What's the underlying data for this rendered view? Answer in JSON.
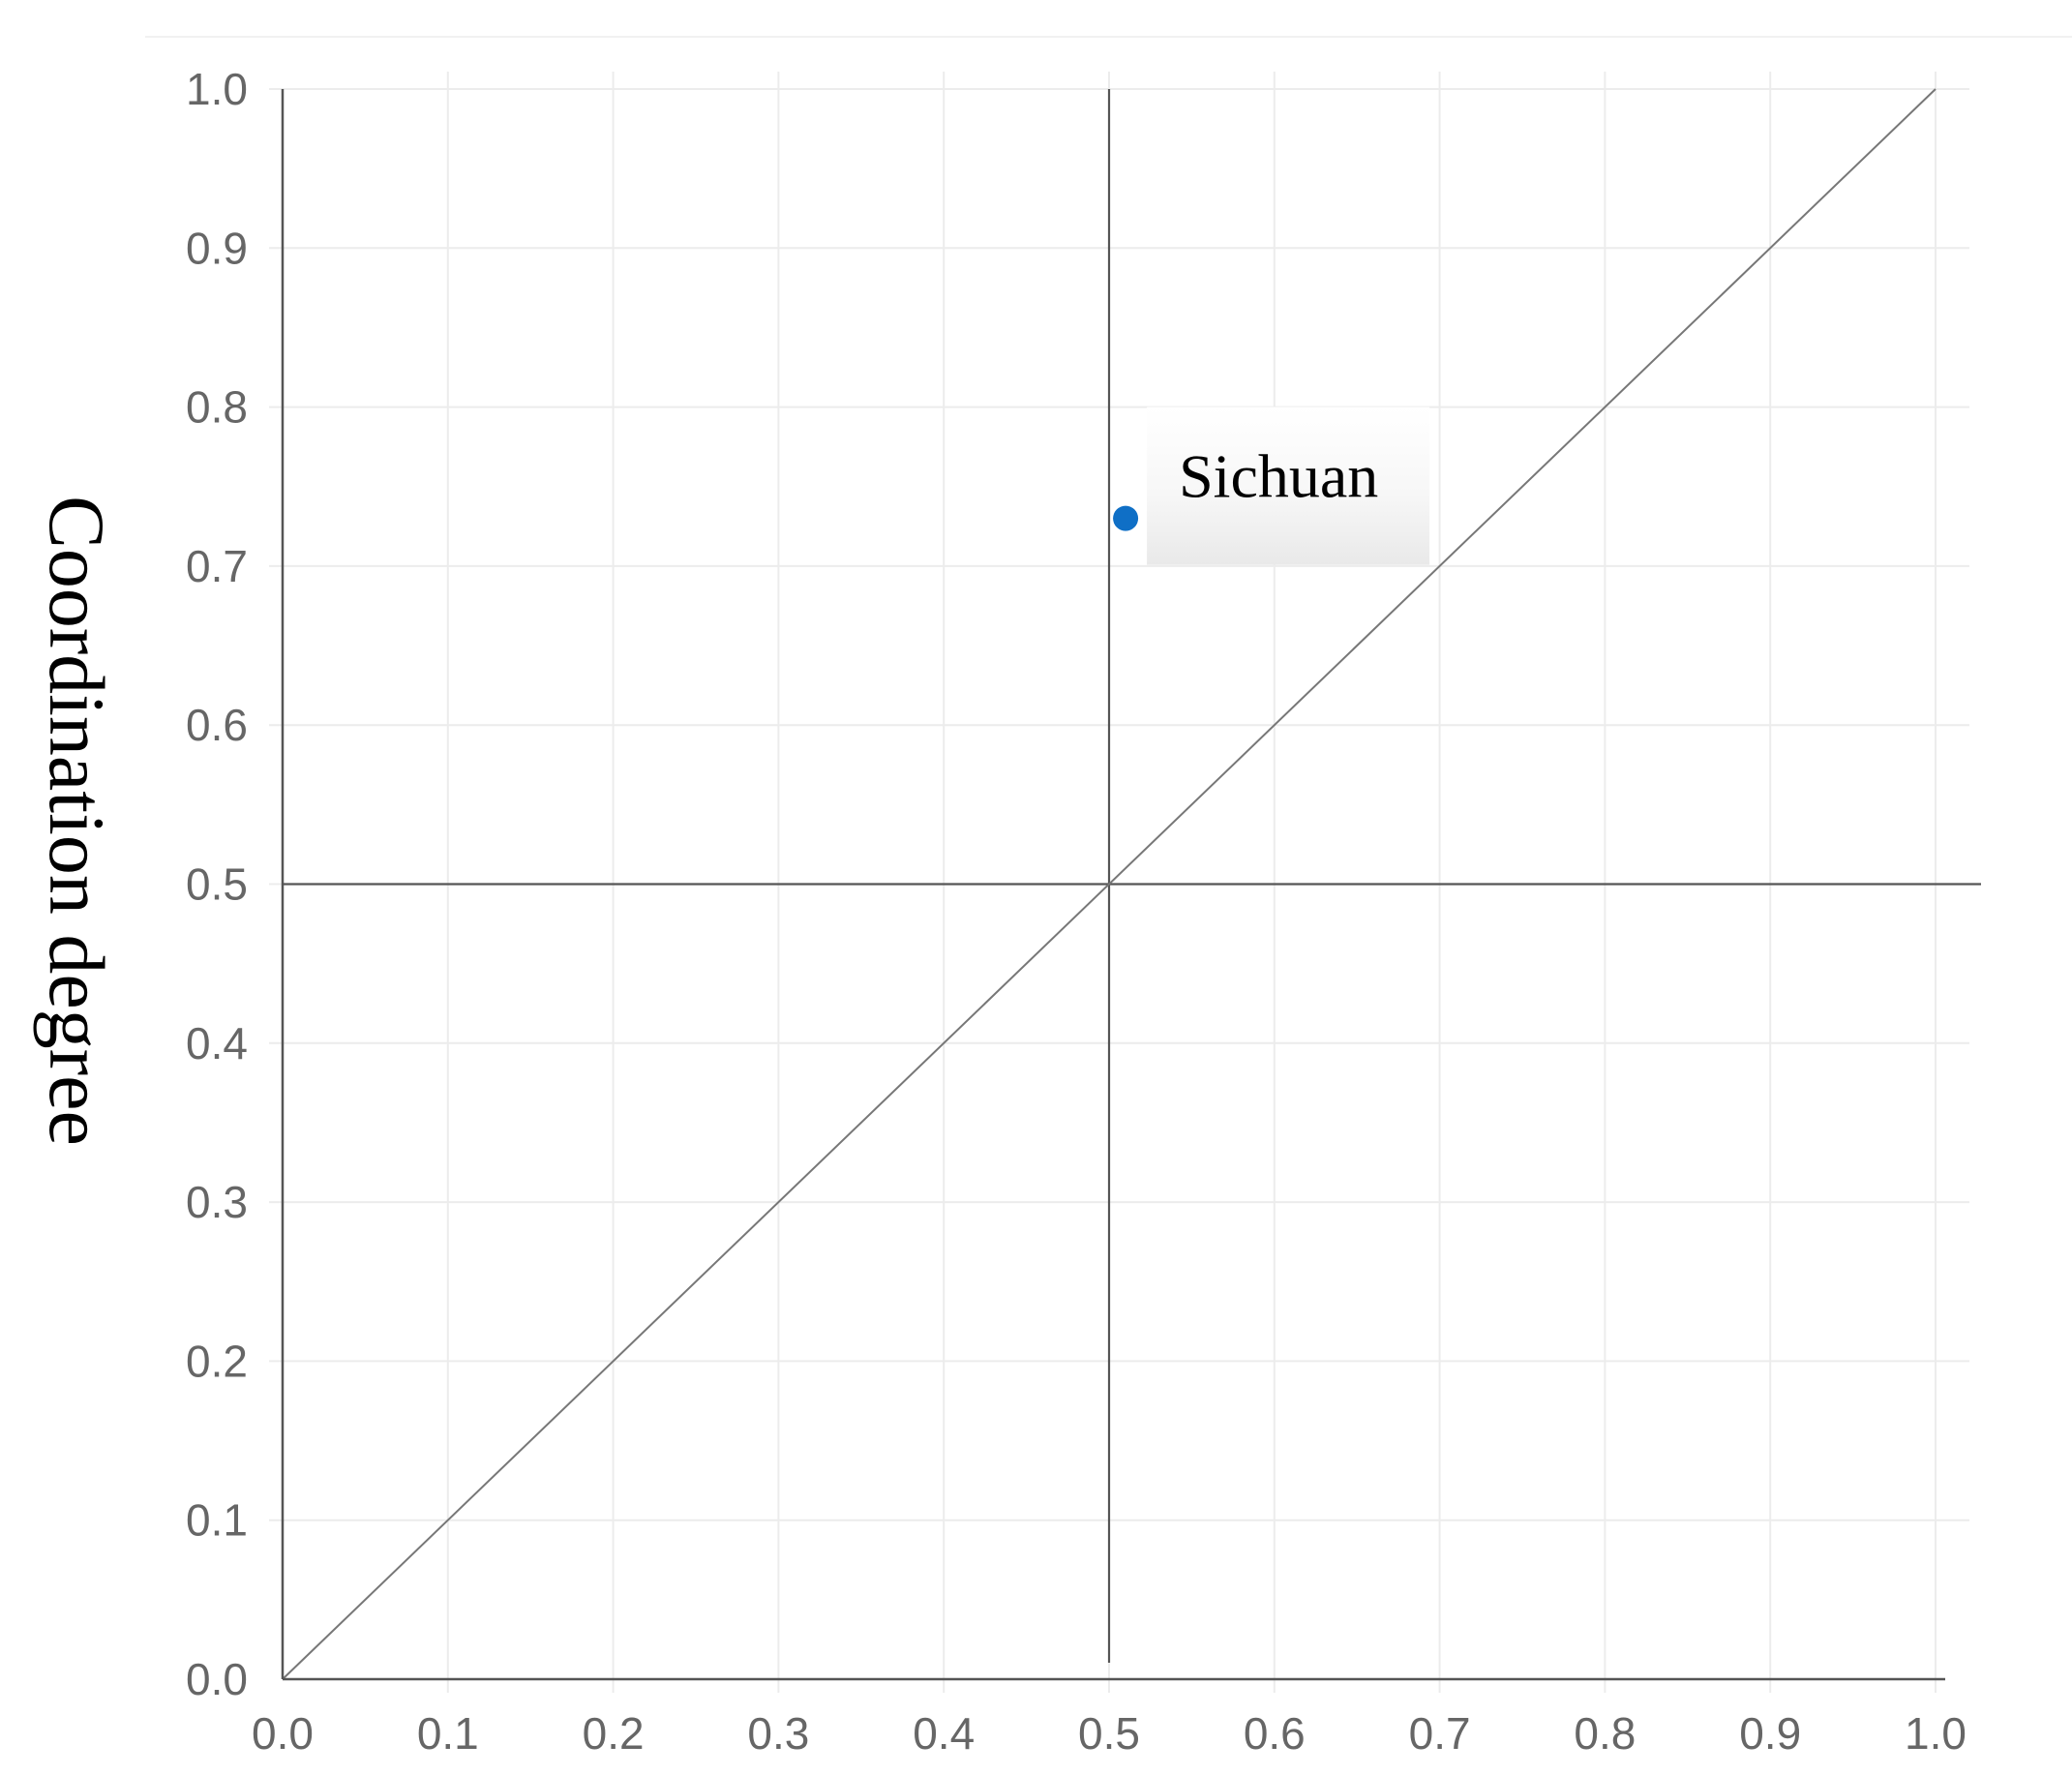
{
  "chart_data": {
    "type": "scatter",
    "title": "",
    "xlabel": "",
    "ylabel": "Coordination degree",
    "xlim": [
      0,
      1
    ],
    "ylim": [
      0,
      1
    ],
    "x_ticks": [
      "0.0",
      "0.1",
      "0.2",
      "0.3",
      "0.4",
      "0.5",
      "0.6",
      "0.7",
      "0.8",
      "0.9",
      "1.0"
    ],
    "y_ticks": [
      "0.0",
      "0.1",
      "0.2",
      "0.3",
      "0.4",
      "0.5",
      "0.6",
      "0.7",
      "0.8",
      "0.9",
      "1.0"
    ],
    "grid": true,
    "reference_lines": {
      "vertical_x": 0.5,
      "horizontal_y": 0.5,
      "diagonal": "y = x"
    },
    "points": [
      {
        "label": "Sichuan",
        "x": 0.51,
        "y": 0.73
      }
    ],
    "colors": {
      "point": "#0f6fc6",
      "grid": "#ececec",
      "reference_line": "#555555",
      "tick_text": "#666666"
    }
  }
}
